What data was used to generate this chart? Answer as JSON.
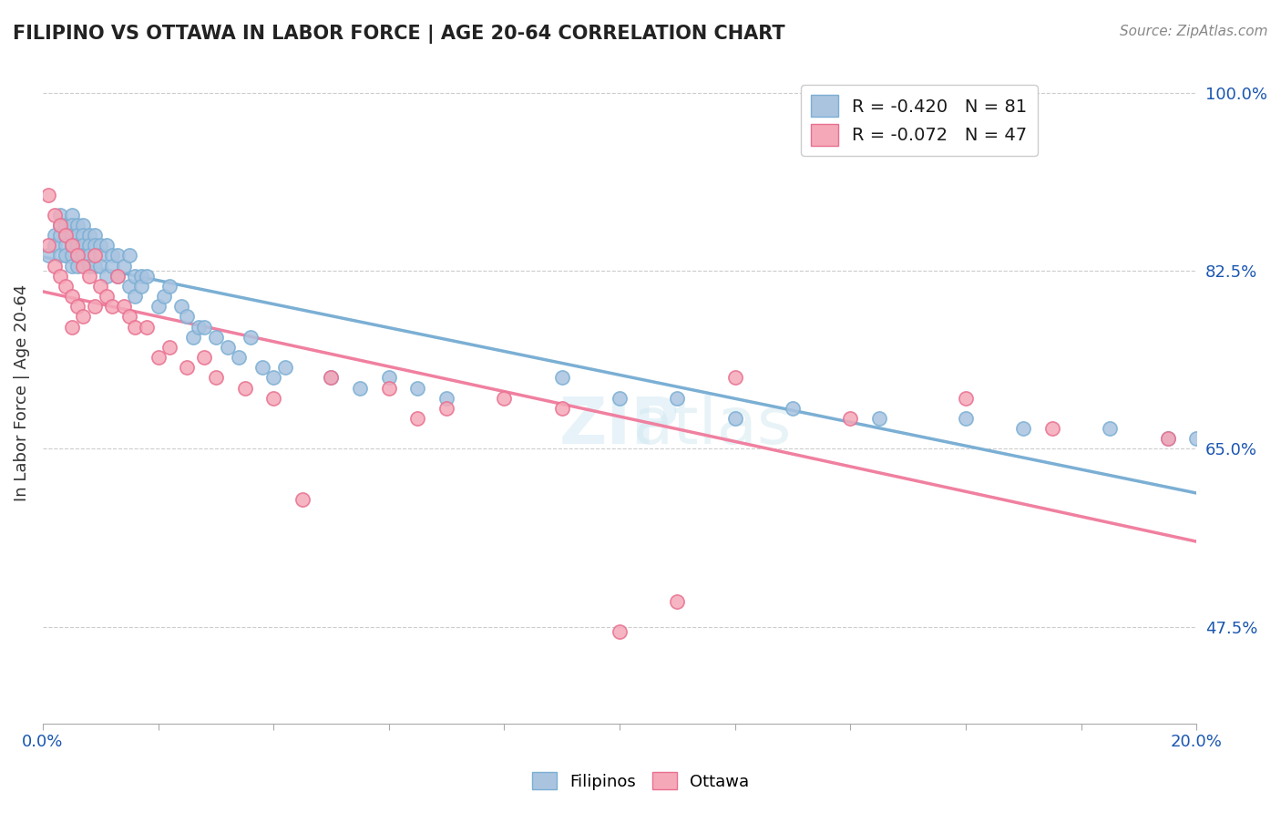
{
  "title": "FILIPINO VS OTTAWA IN LABOR FORCE | AGE 20-64 CORRELATION CHART",
  "source_text": "Source: ZipAtlas.com",
  "xlabel": "",
  "ylabel": "In Labor Force | Age 20-64",
  "xlim": [
    0.0,
    0.2
  ],
  "ylim": [
    0.38,
    1.03
  ],
  "xticks": [
    0.0,
    0.02,
    0.04,
    0.06,
    0.08,
    0.1,
    0.12,
    0.14,
    0.16,
    0.18,
    0.2
  ],
  "xticklabels": [
    "0.0%",
    "",
    "",
    "",
    "",
    "",
    "",
    "",
    "",
    "",
    "20.0%"
  ],
  "yticks_right": [
    0.475,
    0.65,
    0.825,
    1.0
  ],
  "ytick_right_labels": [
    "47.5%",
    "65.0%",
    "82.5%",
    "100.0%"
  ],
  "r_filipino": -0.42,
  "n_filipino": 81,
  "r_ottawa": -0.072,
  "n_ottawa": 47,
  "color_filipino": "#aac4e0",
  "color_ottawa": "#f5a8b8",
  "color_filipino_line": "#7bafd4",
  "color_ottawa_line": "#f080a0",
  "watermark": "ZIPatlas",
  "legend_r_color": "#1a56b0",
  "legend_n_color": "#1a56b0",
  "filipinos_scatter_x": [
    0.001,
    0.002,
    0.002,
    0.003,
    0.003,
    0.003,
    0.003,
    0.004,
    0.004,
    0.004,
    0.004,
    0.005,
    0.005,
    0.005,
    0.005,
    0.005,
    0.005,
    0.006,
    0.006,
    0.006,
    0.006,
    0.006,
    0.007,
    0.007,
    0.007,
    0.007,
    0.008,
    0.008,
    0.008,
    0.008,
    0.009,
    0.009,
    0.009,
    0.01,
    0.01,
    0.01,
    0.011,
    0.011,
    0.012,
    0.012,
    0.013,
    0.013,
    0.014,
    0.015,
    0.015,
    0.016,
    0.016,
    0.017,
    0.017,
    0.018,
    0.02,
    0.021,
    0.022,
    0.024,
    0.025,
    0.026,
    0.027,
    0.028,
    0.03,
    0.032,
    0.034,
    0.036,
    0.038,
    0.04,
    0.042,
    0.05,
    0.055,
    0.06,
    0.065,
    0.07,
    0.09,
    0.1,
    0.11,
    0.12,
    0.13,
    0.145,
    0.16,
    0.17,
    0.185,
    0.195,
    0.2
  ],
  "filipinos_scatter_y": [
    0.84,
    0.86,
    0.85,
    0.88,
    0.87,
    0.86,
    0.84,
    0.87,
    0.86,
    0.85,
    0.84,
    0.88,
    0.87,
    0.86,
    0.85,
    0.84,
    0.83,
    0.87,
    0.86,
    0.85,
    0.84,
    0.83,
    0.87,
    0.86,
    0.85,
    0.84,
    0.86,
    0.85,
    0.84,
    0.83,
    0.86,
    0.85,
    0.83,
    0.85,
    0.84,
    0.83,
    0.85,
    0.82,
    0.84,
    0.83,
    0.84,
    0.82,
    0.83,
    0.84,
    0.81,
    0.82,
    0.8,
    0.82,
    0.81,
    0.82,
    0.79,
    0.8,
    0.81,
    0.79,
    0.78,
    0.76,
    0.77,
    0.77,
    0.76,
    0.75,
    0.74,
    0.76,
    0.73,
    0.72,
    0.73,
    0.72,
    0.71,
    0.72,
    0.71,
    0.7,
    0.72,
    0.7,
    0.7,
    0.68,
    0.69,
    0.68,
    0.68,
    0.67,
    0.67,
    0.66,
    0.66
  ],
  "ottawa_scatter_x": [
    0.001,
    0.001,
    0.002,
    0.002,
    0.003,
    0.003,
    0.004,
    0.004,
    0.005,
    0.005,
    0.005,
    0.006,
    0.006,
    0.007,
    0.007,
    0.008,
    0.009,
    0.009,
    0.01,
    0.011,
    0.012,
    0.013,
    0.014,
    0.015,
    0.016,
    0.018,
    0.02,
    0.022,
    0.025,
    0.028,
    0.03,
    0.035,
    0.04,
    0.045,
    0.05,
    0.06,
    0.065,
    0.07,
    0.08,
    0.09,
    0.1,
    0.11,
    0.12,
    0.14,
    0.16,
    0.175,
    0.195
  ],
  "ottawa_scatter_y": [
    0.9,
    0.85,
    0.88,
    0.83,
    0.87,
    0.82,
    0.86,
    0.81,
    0.85,
    0.8,
    0.77,
    0.84,
    0.79,
    0.83,
    0.78,
    0.82,
    0.84,
    0.79,
    0.81,
    0.8,
    0.79,
    0.82,
    0.79,
    0.78,
    0.77,
    0.77,
    0.74,
    0.75,
    0.73,
    0.74,
    0.72,
    0.71,
    0.7,
    0.6,
    0.72,
    0.71,
    0.68,
    0.69,
    0.7,
    0.69,
    0.47,
    0.5,
    0.72,
    0.68,
    0.7,
    0.67,
    0.66
  ]
}
